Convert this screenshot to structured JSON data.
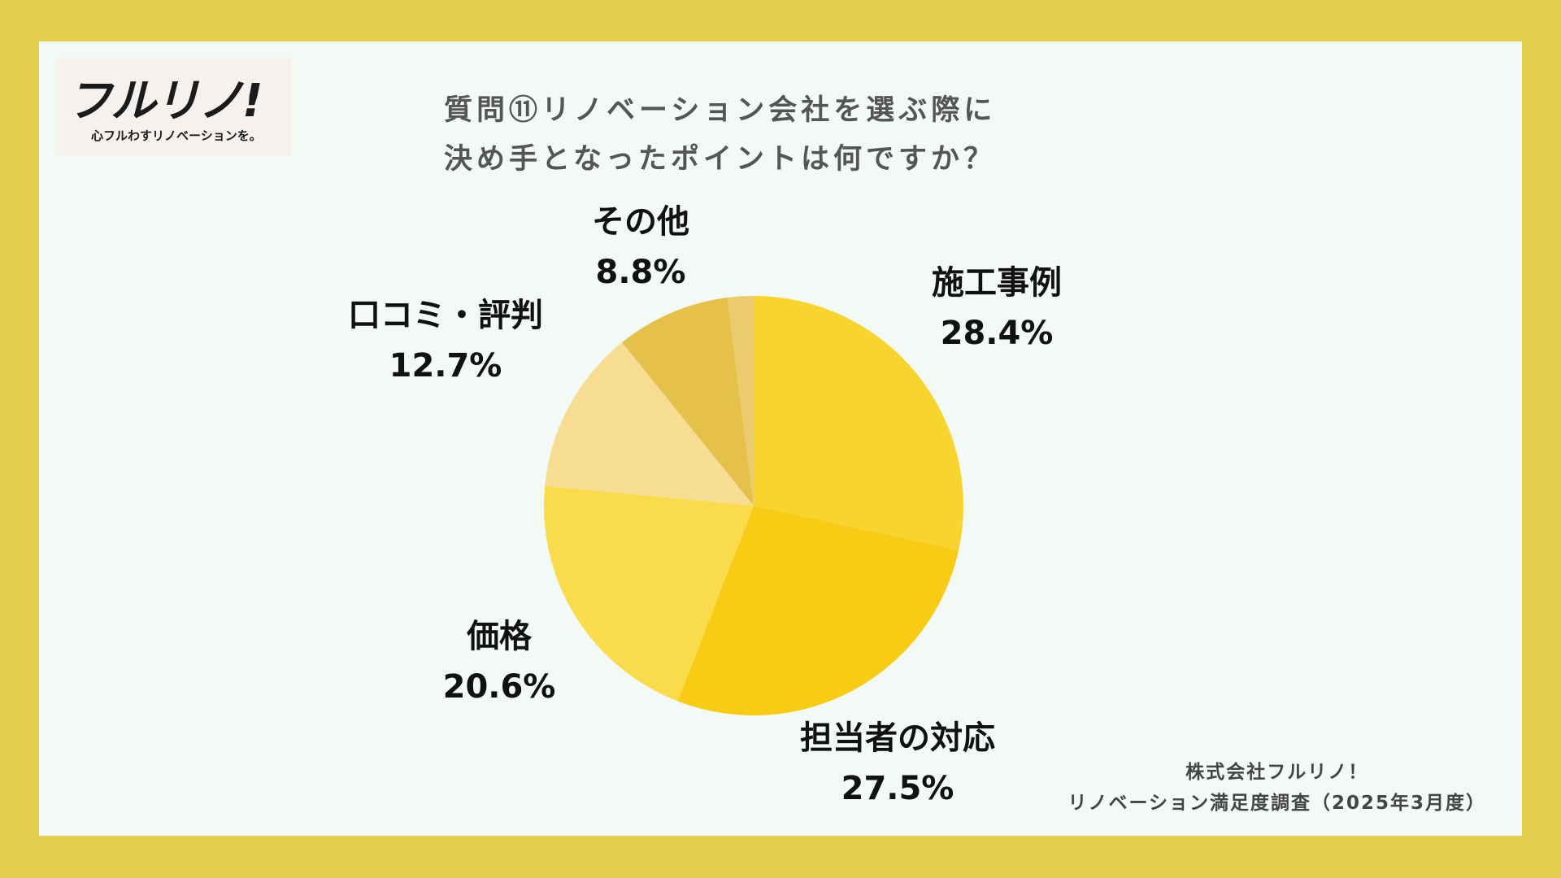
{
  "logo": {
    "mark": "フルリノ!",
    "tagline": "心フルわすリノベーションを。"
  },
  "title": {
    "line1": "質問⑪リノベーション会社を選ぶ際に",
    "line2": "決め手となったポイントは何ですか？"
  },
  "footer": {
    "line1": "株式会社フルリノ！",
    "line2": "リノベーション満足度調査（2025年3月度）"
  },
  "colors": {
    "frame": "#E6CF4C",
    "panel": "#F3F9F4"
  },
  "chart_data": {
    "type": "pie",
    "title": "質問⑪リノベーション会社を選ぶ際に決め手となったポイントは何ですか？",
    "unit": "%",
    "slices": [
      {
        "label": "施工事例",
        "value": 28.4,
        "display": "28.4%",
        "color": "#F8D42F"
      },
      {
        "label": "担当者の対応",
        "value": 27.5,
        "display": "27.5%",
        "color": "#F8CB14"
      },
      {
        "label": "価格",
        "value": 20.6,
        "display": "20.6%",
        "color": "#FADB4B"
      },
      {
        "label": "口コミ・評判",
        "value": 12.7,
        "display": "12.7%",
        "color": "#F6DD92"
      },
      {
        "label": "その他",
        "value": 8.8,
        "display": "8.8%",
        "color": "#E5C04A"
      },
      {
        "label": "",
        "value": 2.0,
        "display": "",
        "color": "#EBCC6C"
      }
    ]
  }
}
